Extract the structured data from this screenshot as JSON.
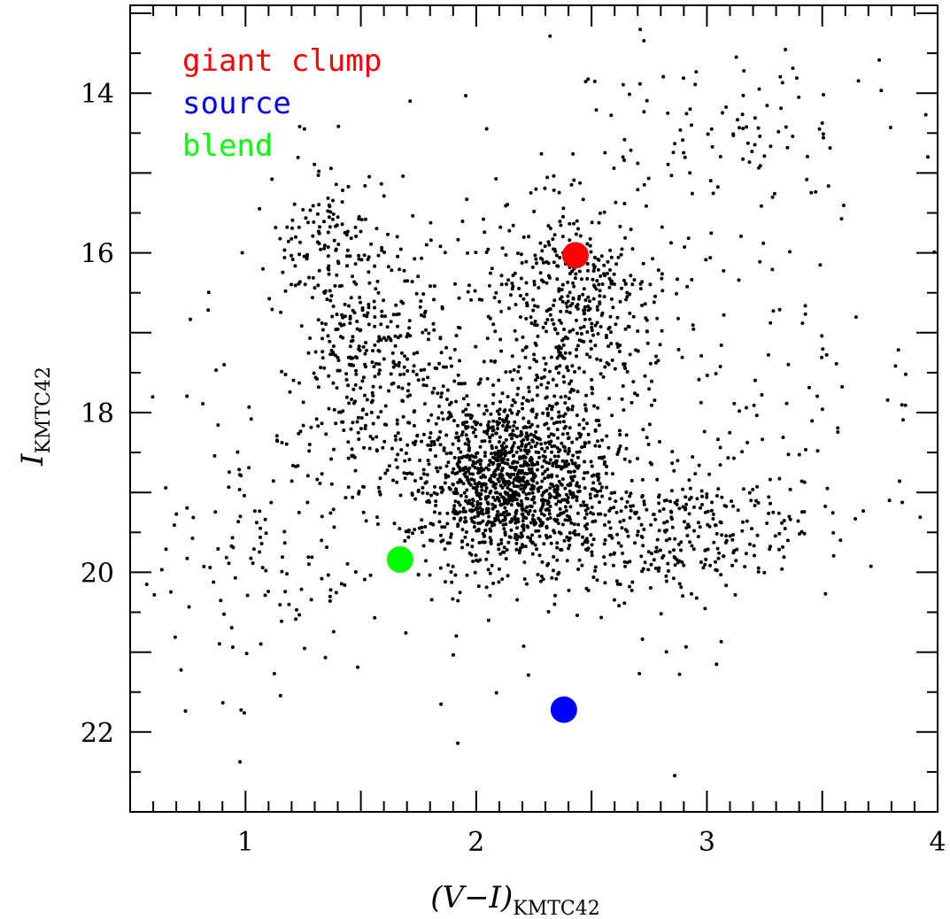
{
  "chart_data": {
    "type": "scatter",
    "xlabel": {
      "main": "(V−I)",
      "sub": "KMTC42"
    },
    "ylabel": {
      "main": "I",
      "sub": "KMTC42"
    },
    "xlim": [
      0.5,
      4.0
    ],
    "ylim": [
      23.0,
      12.9
    ],
    "y_inverted": true,
    "x_ticks": [
      1,
      2,
      3,
      4
    ],
    "y_ticks": [
      14,
      16,
      18,
      20,
      22
    ],
    "x_tick_labels": [
      "1",
      "2",
      "3",
      "4"
    ],
    "y_tick_labels": [
      "14",
      "16",
      "18",
      "20",
      "22"
    ],
    "legend_placement": "top-left",
    "grid": false,
    "highlighted_points": [
      {
        "name": "giant clump",
        "x": 2.43,
        "y": 16.03,
        "color": "#ff0000"
      },
      {
        "name": "source",
        "x": 2.38,
        "y": 21.72,
        "color": "#0000ff"
      },
      {
        "name": "blend",
        "x": 1.67,
        "y": 19.84,
        "color": "#00ff00"
      }
    ],
    "field_stars": {
      "color": "#000000",
      "groups": [
        {
          "x_mean": 2.15,
          "y_mean": 18.8,
          "x_sd": 0.22,
          "y_sd": 0.55,
          "count": 1300
        },
        {
          "x_mean": 2.4,
          "y_mean": 16.6,
          "x_sd": 0.18,
          "y_sd": 0.65,
          "count": 420
        },
        {
          "x_mean": 1.55,
          "y_mean": 17.2,
          "x_sd": 0.17,
          "y_sd": 0.75,
          "count": 320
        },
        {
          "x_mean": 2.8,
          "y_mean": 19.5,
          "x_sd": 0.3,
          "y_sd": 0.4,
          "count": 300
        },
        {
          "x_mean": 1.35,
          "y_mean": 15.9,
          "x_sd": 0.1,
          "y_sd": 0.45,
          "count": 90
        },
        {
          "x_mean": 2.25,
          "y_mean": 18.2,
          "x_sd": 0.75,
          "y_sd": 1.6,
          "count": 380
        },
        {
          "x_mean": 1.1,
          "y_mean": 19.4,
          "x_sd": 0.3,
          "y_sd": 0.9,
          "count": 110
        },
        {
          "x_mean": 3.05,
          "y_mean": 14.6,
          "x_sd": 0.4,
          "y_sd": 0.5,
          "count": 110
        },
        {
          "x_mean": 3.4,
          "y_mean": 17.8,
          "x_sd": 0.4,
          "y_sd": 0.9,
          "count": 45
        }
      ]
    }
  }
}
